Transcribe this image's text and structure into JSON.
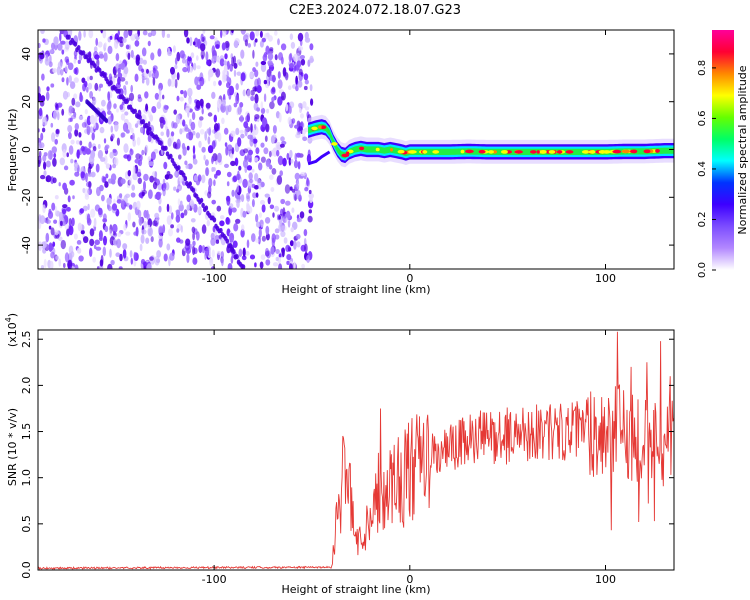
{
  "title": "C2E3.2024.072.18.07.G23",
  "chart_data": [
    {
      "type": "heatmap",
      "xlabel": "Height of straight line (km)",
      "ylabel": "Frequency (Hz)",
      "xlim": [
        -190,
        135
      ],
      "ylim": [
        -50,
        50
      ],
      "x_ticks": [
        -100,
        0,
        100
      ],
      "x_tick_labels": [
        "-100",
        "0",
        "100"
      ],
      "y_ticks": [
        -40,
        -20,
        0,
        20,
        40
      ],
      "y_tick_labels": [
        "-40",
        "-20",
        "0",
        "20",
        "40"
      ],
      "noise_region_x": [
        -190,
        -50
      ],
      "doppler_curve": {
        "x": [
          -52,
          -48,
          -45,
          -43,
          -41,
          -39,
          -37,
          -35,
          -33,
          -31,
          -28,
          -25,
          -22,
          -19,
          -16,
          -13,
          -10,
          -7,
          -4,
          -2,
          0,
          5,
          10,
          20,
          30,
          40,
          50,
          60,
          70,
          80,
          90,
          100,
          110,
          120,
          130,
          135
        ],
        "y": [
          8,
          9,
          9.5,
          9,
          7,
          3,
          0,
          -2,
          -2.5,
          -1,
          0,
          0.5,
          0,
          0,
          0,
          -0.5,
          0,
          -0.5,
          -1,
          -1.5,
          -1,
          -1,
          -1,
          -1,
          -0.8,
          -1,
          -1,
          -1,
          -1,
          -1,
          -1,
          -1,
          -0.8,
          -0.8,
          -0.5,
          -0.5
        ]
      },
      "lower_branch": {
        "x": [
          -52,
          -48,
          -45,
          -41
        ],
        "y": [
          -6,
          -5,
          -3,
          -1
        ]
      },
      "diagonal_feature": {
        "x": [
          -175,
          -150,
          -125,
          -100,
          -85
        ],
        "y": [
          47,
          25,
          0,
          -30,
          -50
        ]
      },
      "secondary_line": {
        "x": [
          -165,
          -155
        ],
        "y": [
          20,
          12
        ]
      },
      "grid": false
    },
    {
      "type": "line",
      "xlabel": "Height of straight line (km)",
      "ylabel": "SNR (10 * v/v)",
      "y_exponent_label": "(x10",
      "y_exponent_power": "4",
      "y_exponent_close": ")",
      "xlim": [
        -190,
        135
      ],
      "ylim": [
        0,
        2.6
      ],
      "x_ticks": [
        -100,
        0,
        100
      ],
      "x_tick_labels": [
        "-100",
        "0",
        "100"
      ],
      "y_ticks": [
        0,
        0.5,
        1.0,
        1.5,
        2.0,
        2.5
      ],
      "y_tick_labels": [
        "0.0",
        "0.5",
        "1.0",
        "1.5",
        "2.0",
        "2.5"
      ],
      "series": [
        {
          "color": "#e53935",
          "envelope_x": [
            -190,
            -40,
            -38,
            -35,
            -33,
            -30,
            -28,
            -25,
            -22,
            -20,
            -18,
            -15,
            -12,
            -10,
            -5,
            0,
            10,
            20,
            30,
            40,
            50,
            60,
            70,
            80,
            90,
            100,
            105,
            110,
            115,
            120,
            125,
            130,
            135
          ],
          "envelope_y": [
            0.02,
            0.03,
            0.45,
            0.9,
            1.1,
            0.7,
            0.4,
            0.3,
            0.5,
            0.7,
            0.8,
            0.85,
            0.9,
            0.95,
            1.0,
            1.05,
            1.2,
            1.3,
            1.4,
            1.45,
            1.45,
            1.5,
            1.5,
            1.5,
            1.52,
            1.5,
            1.5,
            1.5,
            1.45,
            1.45,
            1.4,
            1.4,
            1.4
          ],
          "spikes": [
            [
              -34,
              1.43
            ],
            [
              -15,
              1.75
            ],
            [
              70,
              1.72
            ],
            [
              106,
              2.58
            ],
            [
              128,
              2.48
            ],
            [
              133,
              2.1
            ],
            [
              121,
              2.25
            ],
            [
              113,
              2.2
            ],
            [
              103,
              0.43
            ],
            [
              117,
              0.52
            ],
            [
              125,
              0.53
            ],
            [
              122,
              0.72
            ]
          ]
        }
      ],
      "grid": false
    }
  ],
  "colorbar": {
    "label": "Normalized spectral amplitude",
    "range": [
      0.0,
      0.95
    ],
    "ticks": [
      0.0,
      0.2,
      0.4,
      0.6,
      0.8
    ],
    "tick_labels": [
      "0.0",
      "0.2",
      "0.4",
      "0.6",
      "0.8"
    ],
    "colors": [
      "#ffffff",
      "#b388ff",
      "#7c4dff",
      "#3d00ff",
      "#0033ff",
      "#00ffff",
      "#00ff66",
      "#66ff00",
      "#ffff00",
      "#ff8800",
      "#ff0033",
      "#ff0099"
    ]
  }
}
